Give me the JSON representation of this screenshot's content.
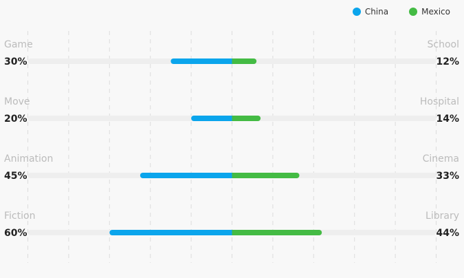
{
  "chart_data": {
    "type": "bar",
    "legend": {
      "placement": "top-right",
      "entries": [
        {
          "name": "China",
          "color": "#0ba5ec"
        },
        {
          "name": "Mexico",
          "color": "#44bb44"
        }
      ]
    },
    "rows": [
      {
        "left_label": "Game",
        "left_value": 30,
        "right_label": "School",
        "right_value": 12
      },
      {
        "left_label": "Move",
        "left_value": 20,
        "right_label": "Hospital",
        "right_value": 14
      },
      {
        "left_label": "Animation",
        "left_value": 45,
        "right_label": "Cinema",
        "right_value": 33
      },
      {
        "left_label": "Fiction",
        "left_value": 60,
        "right_label": "Library",
        "right_value": 44
      }
    ],
    "value_suffix": "%",
    "xlim": [
      -100,
      100
    ],
    "grid": true,
    "colors": {
      "track": "#eeeeee",
      "grid": "#dcdcdc",
      "category_label": "#bbbbbb",
      "value_label": "#222222"
    }
  }
}
